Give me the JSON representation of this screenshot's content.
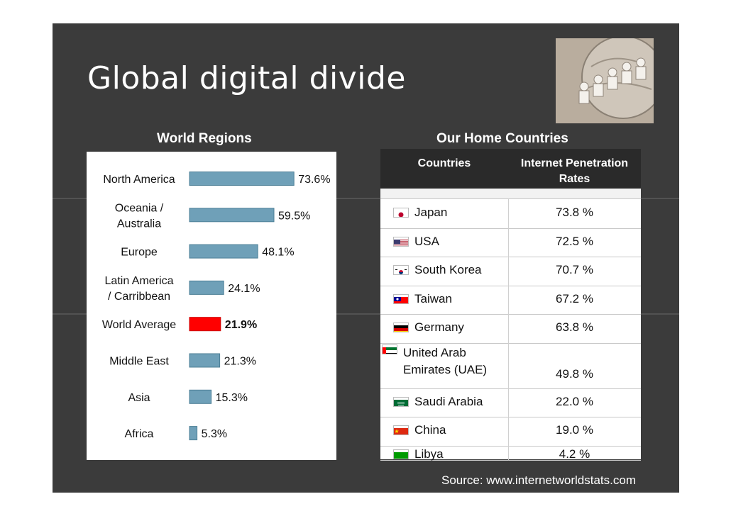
{
  "title": "Global digital divide",
  "headings": {
    "regions": "World Regions",
    "countries": "Our Home Countries"
  },
  "chart_data": {
    "type": "bar",
    "orientation": "horizontal",
    "categories": [
      "North America",
      "Oceania / Australia",
      "Europe",
      "Latin America / Carribbean",
      "World Average",
      "Middle East",
      "Asia",
      "Africa"
    ],
    "category_lines": [
      [
        "North America"
      ],
      [
        "Oceania /",
        "Australia"
      ],
      [
        "Europe"
      ],
      [
        "Latin America",
        "/ Carribbean"
      ],
      [
        "World Average"
      ],
      [
        "Middle East"
      ],
      [
        "Asia"
      ],
      [
        "Africa"
      ]
    ],
    "values": [
      73.6,
      59.5,
      48.1,
      24.1,
      21.9,
      21.3,
      15.3,
      5.3
    ],
    "value_labels": [
      "73.6%",
      "59.5%",
      "48.1%",
      "24.1%",
      "21.9%",
      "21.3%",
      "15.3%",
      "5.3%"
    ],
    "highlight_index": 4,
    "bar_color": "#6fa0b8",
    "highlight_color": "#ff0000",
    "xlim": [
      0,
      100
    ],
    "grid": false
  },
  "table": {
    "headers": {
      "country": "Countries",
      "rate": "Internet Penetration Rates"
    },
    "rows": [
      {
        "country": "Japan",
        "rate": "73.8 %",
        "flag": "japan-flag-icon"
      },
      {
        "country": "USA",
        "rate": "72.5 %",
        "flag": "usa-flag-icon"
      },
      {
        "country": "South Korea",
        "rate": "70.7 %",
        "flag": "south-korea-flag-icon"
      },
      {
        "country": "Taiwan",
        "rate": "67.2 %",
        "flag": "taiwan-flag-icon"
      },
      {
        "country": "Germany",
        "rate": "63.8 %",
        "flag": "germany-flag-icon"
      },
      {
        "country": "United Arab Emirates (UAE)",
        "rate": "49.8 %",
        "flag": "uae-flag-icon"
      },
      {
        "country": "Saudi Arabia",
        "rate": "22.0 %",
        "flag": "saudi-arabia-flag-icon"
      },
      {
        "country": "China",
        "rate": "19.0 %",
        "flag": "china-flag-icon"
      },
      {
        "country": "Libya",
        "rate": "4.2 %",
        "flag": "libya-flag-icon"
      }
    ]
  },
  "source": "Source: www.internetworldstats.com"
}
